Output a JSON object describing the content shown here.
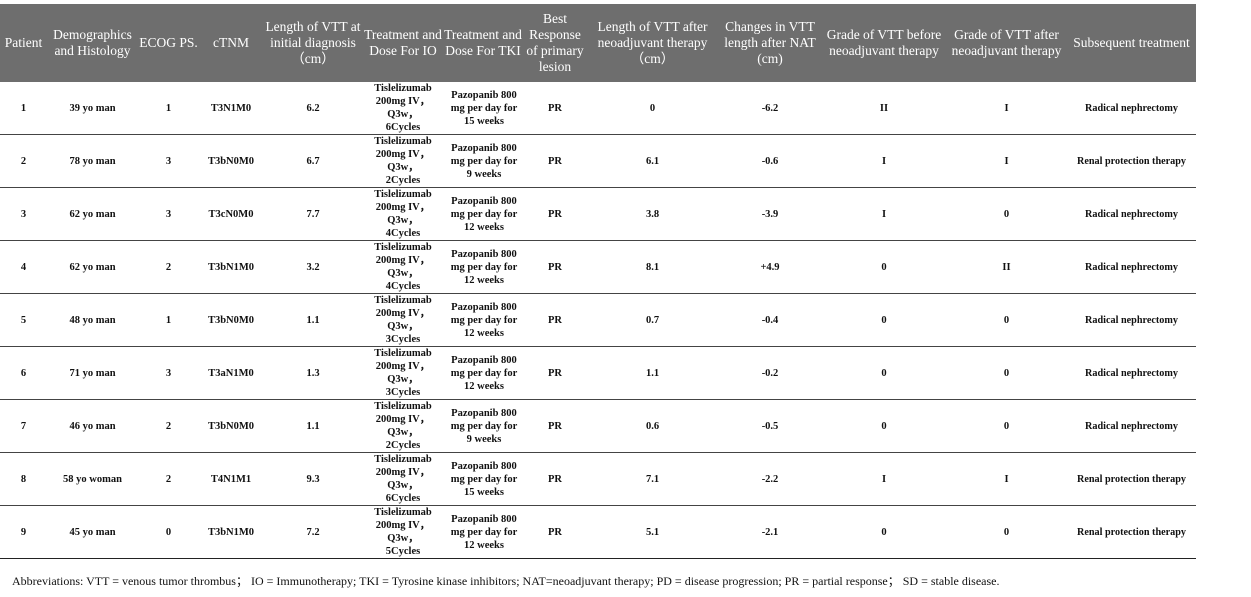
{
  "table": {
    "headers": [
      "Patient",
      "Demographics and Histology",
      "ECOG PS.",
      "cTNM",
      "Length of VTT at initial diagnosis（cm）",
      "Treatment and Dose For IO",
      "Treatment and Dose For TKI",
      "Best Response of primary lesion",
      "Length of VTT after neoadjuvant therapy（cm）",
      "Changes in VTT length after NAT (cm)",
      "Grade  of VTT before neoadjuvant therapy",
      "Grade  of VTT after neoadjuvant therapy",
      "Subsequent treatment"
    ],
    "rows": [
      {
        "patient": "1",
        "demo": "39 yo man",
        "ecog": "1",
        "ctnm": "T3N1M0",
        "len_initial": "6.2",
        "io_drug": "Tislelizumab",
        "io_dose": "200mg IV，Q3w，",
        "io_cycles": "6Cycles",
        "tki_drug": "Pazopanib 800",
        "tki_dose": "mg per day for",
        "tki_duration": "15 weeks",
        "response": "PR",
        "len_after": "0",
        "change": "-6.2",
        "grade_before": "II",
        "grade_after": "I",
        "subsequent": "Radical nephrectomy"
      },
      {
        "patient": "2",
        "demo": "78 yo man",
        "ecog": "3",
        "ctnm": "T3bN0M0",
        "len_initial": "6.7",
        "io_drug": "Tislelizumab",
        "io_dose": "200mg IV，Q3w，",
        "io_cycles": "2Cycles",
        "tki_drug": "Pazopanib 800",
        "tki_dose": "mg per day for",
        "tki_duration": "9 weeks",
        "response": "PR",
        "len_after": "6.1",
        "change": "-0.6",
        "grade_before": "I",
        "grade_after": "I",
        "subsequent": "Renal protection therapy"
      },
      {
        "patient": "3",
        "demo": "62 yo man",
        "ecog": "3",
        "ctnm": "T3cN0M0",
        "len_initial": "7.7",
        "io_drug": "Tislelizumab",
        "io_dose": "200mg IV，Q3w，",
        "io_cycles": "4Cycles",
        "tki_drug": "Pazopanib 800",
        "tki_dose": "mg per day for",
        "tki_duration": "12 weeks",
        "response": "PR",
        "len_after": "3.8",
        "change": "-3.9",
        "grade_before": "I",
        "grade_after": "0",
        "subsequent": "Radical nephrectomy"
      },
      {
        "patient": "4",
        "demo": "62 yo man",
        "ecog": "2",
        "ctnm": "T3bN1M0",
        "len_initial": "3.2",
        "io_drug": "Tislelizumab",
        "io_dose": "200mg IV，Q3w，",
        "io_cycles": "4Cycles",
        "tki_drug": "Pazopanib 800",
        "tki_dose": "mg per day for",
        "tki_duration": "12 weeks",
        "response": "PR",
        "len_after": "8.1",
        "change": "+4.9",
        "grade_before": "0",
        "grade_after": "II",
        "subsequent": "Radical nephrectomy"
      },
      {
        "patient": "5",
        "demo": "48 yo man",
        "ecog": "1",
        "ctnm": "T3bN0M0",
        "len_initial": "1.1",
        "io_drug": "Tislelizumab",
        "io_dose": "200mg IV，Q3w，",
        "io_cycles": "3Cycles",
        "tki_drug": "Pazopanib 800",
        "tki_dose": "mg per day for",
        "tki_duration": "12 weeks",
        "response": "PR",
        "len_after": "0.7",
        "change": "-0.4",
        "grade_before": "0",
        "grade_after": "0",
        "subsequent": "Radical nephrectomy"
      },
      {
        "patient": "6",
        "demo": "71 yo man",
        "ecog": "3",
        "ctnm": "T3aN1M0",
        "len_initial": "1.3",
        "io_drug": "Tislelizumab",
        "io_dose": "200mg IV，Q3w，",
        "io_cycles": "3Cycles",
        "tki_drug": "Pazopanib 800",
        "tki_dose": "mg per day for",
        "tki_duration": "12 weeks",
        "response": "PR",
        "len_after": "1.1",
        "change": "-0.2",
        "grade_before": "0",
        "grade_after": "0",
        "subsequent": "Radical nephrectomy"
      },
      {
        "patient": "7",
        "demo": "46 yo man",
        "ecog": "2",
        "ctnm": "T3bN0M0",
        "len_initial": "1.1",
        "io_drug": "Tislelizumab",
        "io_dose": "200mg IV，Q3w，",
        "io_cycles": "2Cycles",
        "tki_drug": "Pazopanib 800",
        "tki_dose": "mg per day for",
        "tki_duration": "9 weeks",
        "response": "PR",
        "len_after": "0.6",
        "change": "-0.5",
        "grade_before": "0",
        "grade_after": "0",
        "subsequent": "Radical nephrectomy"
      },
      {
        "patient": "8",
        "demo": "58 yo woman",
        "ecog": "2",
        "ctnm": "T4N1M1",
        "len_initial": "9.3",
        "io_drug": "Tislelizumab",
        "io_dose": "200mg IV，Q3w，",
        "io_cycles": "6Cycles",
        "tki_drug": "Pazopanib 800",
        "tki_dose": "mg per day for",
        "tki_duration": "15 weeks",
        "response": "PR",
        "len_after": "7.1",
        "change": "-2.2",
        "grade_before": "I",
        "grade_after": "I",
        "subsequent": "Renal protection therapy"
      },
      {
        "patient": "9",
        "demo": "45 yo man",
        "ecog": "0",
        "ctnm": "T3bN1M0",
        "len_initial": "7.2",
        "io_drug": "Tislelizumab",
        "io_dose": "200mg IV，Q3w，",
        "io_cycles": "5Cycles",
        "tki_drug": "Pazopanib 800",
        "tki_dose": "mg per day for",
        "tki_duration": "12 weeks",
        "response": "PR",
        "len_after": "5.1",
        "change": "-2.1",
        "grade_before": "0",
        "grade_after": "0",
        "subsequent": "Renal protection therapy"
      }
    ]
  },
  "footnote": "Abbreviations: VTT = venous tumor thrombus； IO = Immunotherapy; TKI = Tyrosine kinase inhibitors; NAT=neoadjuvant therapy; PD = disease progression; PR = partial response； SD = stable disease.",
  "colors": {
    "header_bg": "#6e6e6e",
    "header_text": "#ffffff",
    "body_text": "#111111"
  }
}
